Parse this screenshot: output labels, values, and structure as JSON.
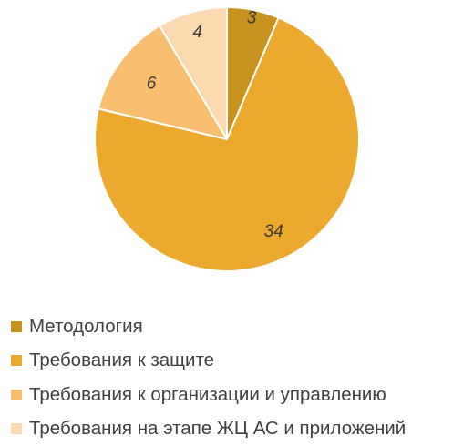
{
  "chart_data": {
    "type": "pie",
    "title": "",
    "series": [
      {
        "values": [
          3,
          34,
          6,
          4
        ],
        "data_labels": [
          "3",
          "34",
          "6",
          "4"
        ]
      }
    ],
    "categories": [
      "Методология",
      "Требования к защите",
      "Требования к организации и управлению",
      "Требования на этапе ЖЦ АС и приложений"
    ],
    "colors": [
      "#c7921e",
      "#eba92e",
      "#f8bf70",
      "#fcd9b0"
    ],
    "start_angle_deg": 0,
    "direction": "clockwise",
    "legend_position": "bottom-left",
    "data_labels_style": "italic"
  }
}
